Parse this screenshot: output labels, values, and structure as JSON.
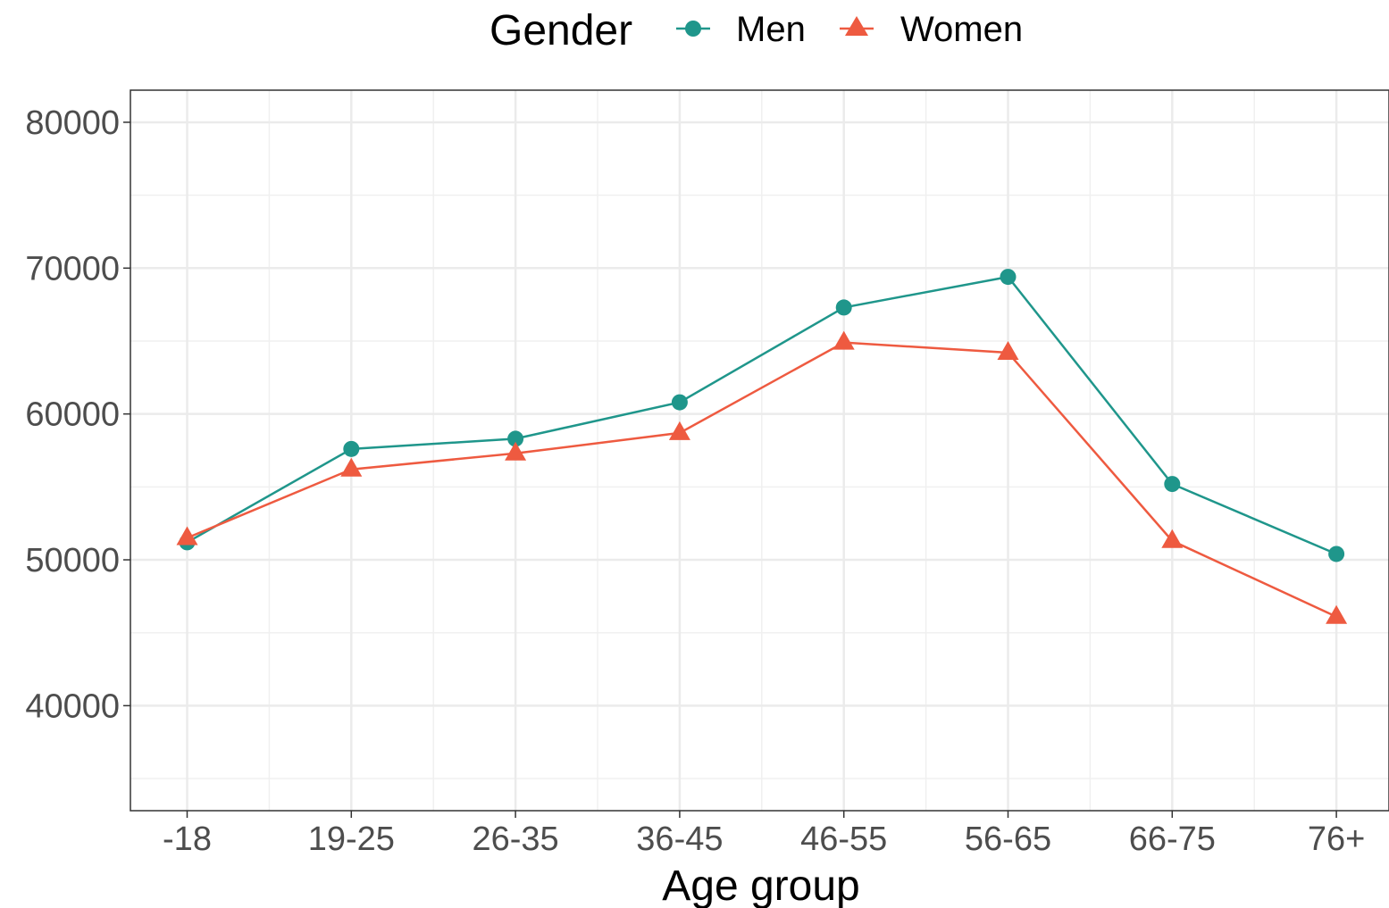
{
  "chart_data": {
    "type": "line",
    "title": "",
    "xlabel": "Age group",
    "ylabel": "",
    "categories": [
      "-18",
      "19-25",
      "26-35",
      "36-45",
      "46-55",
      "56-65",
      "66-75",
      "76+"
    ],
    "ylim": [
      32800,
      82200
    ],
    "yticks": [
      40000,
      50000,
      60000,
      70000,
      80000
    ],
    "grid": true,
    "legend": {
      "title": "Gender",
      "placement": "top"
    },
    "series": [
      {
        "name": "Men",
        "color": "#1f968b",
        "marker": "circle",
        "values": [
          51200,
          57600,
          58300,
          60800,
          67300,
          69400,
          55200,
          50400
        ]
      },
      {
        "name": "Women",
        "color": "#ee5a40",
        "marker": "triangle",
        "values": [
          51500,
          56200,
          57300,
          58700,
          64900,
          64200,
          51300,
          46100
        ]
      }
    ]
  }
}
